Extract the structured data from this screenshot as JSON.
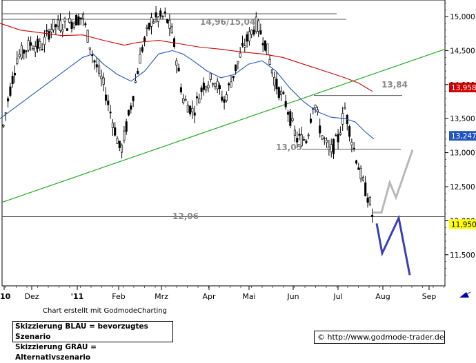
{
  "chart_data": {
    "type": "candlestick",
    "x_ticks": [
      "'10",
      "Dez",
      "'11",
      "Feb",
      "Mrz",
      "Apr",
      "Mai",
      "Jun",
      "Jul",
      "Aug",
      "Sep"
    ],
    "y_ticks": [
      "15,000",
      "14,500",
      "14,000",
      "13,500",
      "13,000",
      "12,500",
      "12,000",
      "11,500"
    ],
    "ylim": [
      11.2,
      15.25
    ],
    "grid": false,
    "price_badges": [
      {
        "value": 13.958,
        "label": "13,958",
        "color": "#cc0000",
        "text_color": "#ffffff"
      },
      {
        "value": 13.247,
        "label": "13,247",
        "color": "#2255bb",
        "text_color": "#ffffff"
      },
      {
        "value": 11.95,
        "label": "11,950",
        "color": "#ffff00",
        "text_color": "#000000"
      }
    ],
    "annotations": [
      {
        "text": "14,96/15,04",
        "value": 15.0
      },
      {
        "text": "13,84",
        "value": 13.84
      },
      {
        "text": "13,05",
        "value": 13.05
      },
      {
        "text": "12,06",
        "value": 12.06
      }
    ],
    "horizontal_levels": [
      {
        "value": 15.04,
        "x_start": 3,
        "x_end": 488
      },
      {
        "value": 14.96,
        "x_start": 3,
        "x_end": 502
      },
      {
        "value": 13.84,
        "x_start": 455,
        "x_end": 583
      },
      {
        "value": 13.05,
        "x_start": 438,
        "x_end": 581
      },
      {
        "value": 12.06,
        "x_start": 3,
        "x_end": 645
      }
    ],
    "trendline": {
      "color": "#22aa22",
      "points": [
        [
          3,
          12.27
        ],
        [
          645,
          14.52
        ]
      ]
    },
    "moving_averages": [
      {
        "color": "#cc0000",
        "points": [
          [
            0,
            14.9
          ],
          [
            30,
            14.8
          ],
          [
            60,
            14.76
          ],
          [
            90,
            14.72
          ],
          [
            120,
            14.73
          ],
          [
            150,
            14.65
          ],
          [
            180,
            14.58
          ],
          [
            200,
            14.62
          ],
          [
            230,
            14.65
          ],
          [
            260,
            14.6
          ],
          [
            290,
            14.55
          ],
          [
            320,
            14.52
          ],
          [
            350,
            14.48
          ],
          [
            380,
            14.45
          ],
          [
            410,
            14.4
          ],
          [
            440,
            14.3
          ],
          [
            470,
            14.2
          ],
          [
            500,
            14.1
          ],
          [
            520,
            14.02
          ],
          [
            540,
            13.9
          ]
        ]
      },
      {
        "color": "#2255bb",
        "points": [
          [
            0,
            13.5
          ],
          [
            20,
            13.65
          ],
          [
            40,
            13.8
          ],
          [
            60,
            13.95
          ],
          [
            80,
            14.1
          ],
          [
            100,
            14.25
          ],
          [
            120,
            14.4
          ],
          [
            135,
            14.45
          ],
          [
            150,
            14.3
          ],
          [
            170,
            14.15
          ],
          [
            190,
            14.05
          ],
          [
            210,
            14.2
          ],
          [
            230,
            14.45
          ],
          [
            250,
            14.5
          ],
          [
            265,
            14.45
          ],
          [
            280,
            14.35
          ],
          [
            300,
            14.2
          ],
          [
            320,
            14.1
          ],
          [
            340,
            14.15
          ],
          [
            360,
            14.3
          ],
          [
            380,
            14.35
          ],
          [
            400,
            14.2
          ],
          [
            420,
            13.95
          ],
          [
            440,
            13.75
          ],
          [
            460,
            13.6
          ],
          [
            480,
            13.52
          ],
          [
            500,
            13.5
          ],
          [
            515,
            13.45
          ],
          [
            530,
            13.3
          ],
          [
            542,
            13.2
          ]
        ]
      }
    ],
    "scenario_blue": {
      "color": "#3b3db8",
      "points": [
        [
          546,
          11.96
        ],
        [
          554,
          11.52
        ],
        [
          578,
          12.04
        ],
        [
          594,
          11.2
        ]
      ]
    },
    "scenario_gray": {
      "color": "#b8b8b8",
      "points": [
        [
          541,
          12.12
        ],
        [
          553,
          12.12
        ],
        [
          565,
          12.56
        ],
        [
          574,
          12.34
        ],
        [
          598,
          13.04
        ]
      ]
    }
  },
  "credit": "Chart erstellt mit GodmodeCharting",
  "legend": {
    "line1": "Skizzierung BLAU = bevorzugtes Szenario",
    "line2": "Skizzierung GRAU = Alternativszenario"
  },
  "url_box": {
    "text": "© http://www.godmode-trader.de"
  }
}
